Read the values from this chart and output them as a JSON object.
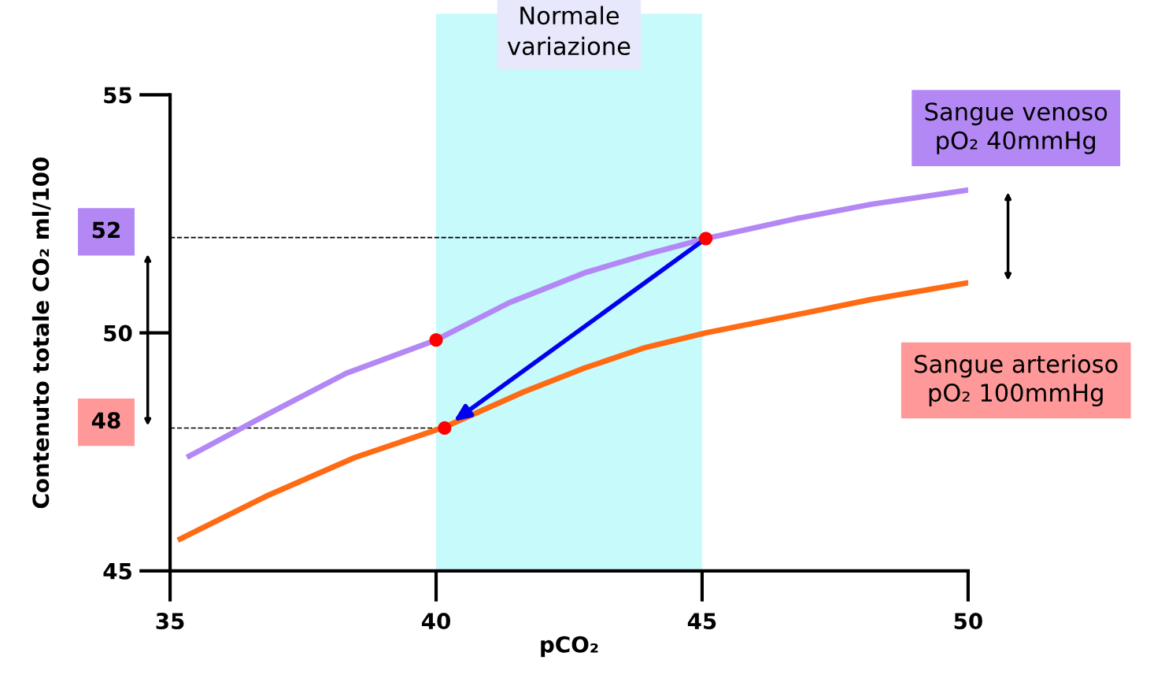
{
  "chart_data": {
    "type": "line",
    "xlabel": "pCO₂",
    "ylabel": "Contenuto totale CO₂ ml/100",
    "xlim": [
      35,
      50
    ],
    "ylim": [
      45,
      55
    ],
    "xticks": [
      35,
      40,
      45,
      50
    ],
    "yticks": [
      45,
      50,
      55
    ],
    "grid": false,
    "series": [
      {
        "name": "Sangue venoso\npO₂ 40mmHg",
        "color": "#b388f5",
        "x": [
          35.36,
          36.85,
          38.31,
          40,
          41.37,
          42.79,
          43.93,
          45.07,
          46.77,
          48.18,
          50.0
        ],
        "values": [
          47.41,
          48.3,
          49.15,
          49.85,
          50.63,
          51.26,
          51.64,
          51.98,
          52.4,
          52.7,
          53.0
        ]
      },
      {
        "name": "Sangue arterioso\npO₂ 100mmHg",
        "color": "#ff6a13",
        "x": [
          35.19,
          36.85,
          38.47,
          40.16,
          41.65,
          42.79,
          43.93,
          45.07,
          46.77,
          48.18,
          50.0
        ],
        "values": [
          45.67,
          46.59,
          47.38,
          48.02,
          48.76,
          49.26,
          49.69,
          50.0,
          50.38,
          50.7,
          51.05
        ]
      },
      {
        "type": "scatter",
        "color": "#ff0000",
        "x": [
          40,
          40.16,
          45.07
        ],
        "values": [
          49.85,
          48.0,
          51.98
        ]
      }
    ],
    "ref_lines": [
      {
        "axis": "y",
        "value": 52,
        "label": "52",
        "color": "#000000",
        "line_style": "dashed"
      },
      {
        "axis": "y",
        "value": 48,
        "label": "48",
        "color": "#000000",
        "line_style": "dashed"
      }
    ],
    "bands": [
      {
        "axis": "x",
        "from": 40,
        "to": 45,
        "label": "Normale\nvariazione",
        "color": "#c6fafb"
      }
    ]
  }
}
